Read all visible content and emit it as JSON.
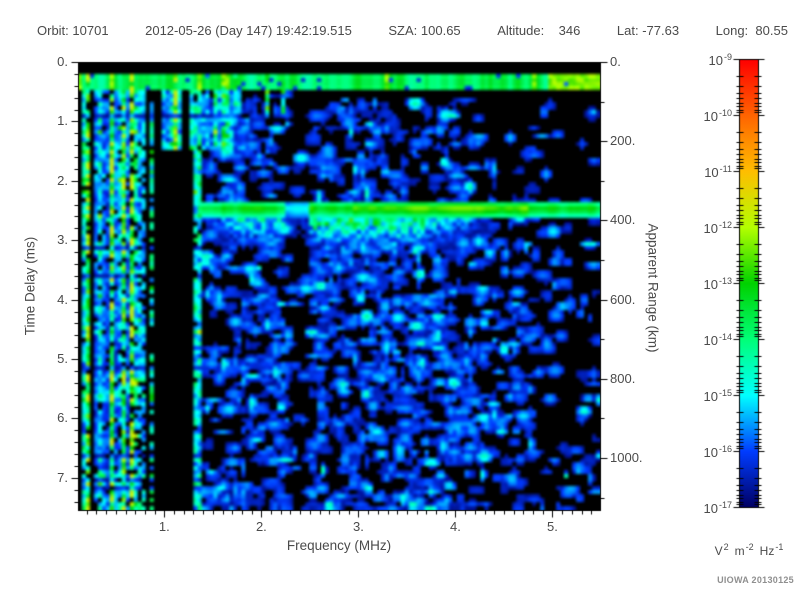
{
  "header": {
    "segments": [
      "Orbit: 10701",
      "2012-05-26 (Day 147) 19:42:19.515",
      "SZA: 100.65",
      "Altitude:    346",
      "Lat: -77.63",
      "Long:  80.55"
    ]
  },
  "chart_data": {
    "type": "heatmap",
    "description": "Radar sounder ionogram: received spectral density vs frequency and echo time delay",
    "xlabel": "Frequency (MHz)",
    "x_range": [
      0.11,
      5.49
    ],
    "x_major_ticks": [
      {
        "label": "1.",
        "value": 1
      },
      {
        "label": "2.",
        "value": 2
      },
      {
        "label": "3.",
        "value": 3
      },
      {
        "label": "4.",
        "value": 4
      },
      {
        "label": "5.",
        "value": 5
      }
    ],
    "x_minor_step": 0.1,
    "ylabel_left": "Time Delay (ms)",
    "y_range": [
      0,
      7.54
    ],
    "y_major_ticks_left": [
      {
        "label": "0.",
        "value": 0
      },
      {
        "label": "1.",
        "value": 1
      },
      {
        "label": "2.",
        "value": 2
      },
      {
        "label": "3.",
        "value": 3
      },
      {
        "label": "4.",
        "value": 4
      },
      {
        "label": "5.",
        "value": 5
      },
      {
        "label": "6.",
        "value": 6
      },
      {
        "label": "7.",
        "value": 7
      }
    ],
    "y_minor_step_left": 0.2,
    "ylabel_right": "Apparent Range (km)",
    "range_km_per_ms": 150,
    "y_right_range": [
      0,
      1131
    ],
    "y_major_ticks_right": [
      {
        "label": "0.",
        "value": 0
      },
      {
        "label": "200.",
        "value": 200
      },
      {
        "label": "400.",
        "value": 400
      },
      {
        "label": "600.",
        "value": 600
      },
      {
        "label": "800.",
        "value": 800
      },
      {
        "label": "1000.",
        "value": 1000
      }
    ],
    "y_minor_step_right": 100,
    "colorbar": {
      "scale": "log",
      "base_label": "10",
      "tick_exponents": [
        -9,
        -10,
        -11,
        -12,
        -13,
        -14,
        -15,
        -16,
        -17
      ],
      "units_parts": [
        [
          "V",
          "2"
        ],
        [
          "m",
          "-2"
        ],
        [
          "Hz",
          "-1"
        ]
      ],
      "colormap": [
        [
          0.0,
          "#000064"
        ],
        [
          0.125,
          "#003cff"
        ],
        [
          0.25,
          "#00ffff"
        ],
        [
          0.375,
          "#00ff78"
        ],
        [
          0.5,
          "#00d200"
        ],
        [
          0.625,
          "#b4ff00"
        ],
        [
          0.75,
          "#ffbe00"
        ],
        [
          0.875,
          "#ff6400"
        ],
        [
          1.0,
          "#ff0000"
        ]
      ]
    },
    "features": {
      "seed": 10701,
      "surface_echo": {
        "delay_ms": [
          0.18,
          0.44
        ],
        "freq_mhz": [
          0.11,
          5.49
        ],
        "apparent_range_km": 45,
        "level": 0.38
      },
      "ionosphere_echo": {
        "delay_ms": [
          2.33,
          2.62
        ],
        "freq_start_mhz": 1.36,
        "bright_freq_mhz": [
          2.95,
          4.75
        ],
        "apparent_range_km": 375,
        "level": 0.5
      },
      "diffuse_tail": {
        "delay_ms": [
          2.62,
          3.2
        ],
        "freq_mhz": [
          1.4,
          4.45
        ]
      },
      "plasma_lines_freq_max_mhz": 1.7,
      "full_height_lines_freq_max_mhz": 0.97,
      "cutoff_gap": {
        "freq_mhz": [
          0.97,
          1.31
        ],
        "delay_start_ms": 1.45
      },
      "survivor_line_freq_mhz": 1.35,
      "quiet_column_freq_mhz": [
        2.26,
        2.5
      ],
      "descender_lines": {
        "freq_mhz": [
          1.7,
          2.3
        ],
        "delay_max_ms": 0.95
      },
      "speckle": {
        "attempts": 3200,
        "freq_min_mhz": 1.37
      }
    },
    "watermark": "UIOWA 20130125"
  }
}
